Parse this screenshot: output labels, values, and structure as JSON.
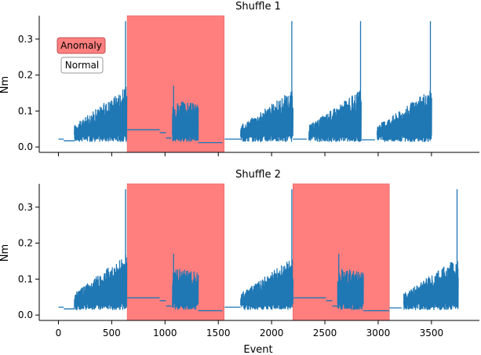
{
  "chart_data": [
    {
      "type": "line",
      "title": "Shuffle 1",
      "ylabel": "Nm",
      "xlabel": "",
      "xlim": [
        -180,
        3950
      ],
      "ylim": [
        -0.015,
        0.365
      ],
      "xticks": [
        0,
        500,
        1000,
        1500,
        2000,
        2500,
        3000,
        3500
      ],
      "xtick_labels": [],
      "yticks": [
        0.0,
        0.1,
        0.2,
        0.3
      ],
      "ytick_labels": [
        "0.0",
        "0.1",
        "0.2",
        "0.3"
      ],
      "series_color": "#1f77b4",
      "anomaly_color": "#ff7f7f",
      "anomaly_spans": [
        [
          645,
          1555
        ]
      ],
      "segments": [
        {
          "kind": "flat",
          "x": [
            0,
            50
          ],
          "y": 0.022
        },
        {
          "kind": "flat",
          "x": [
            50,
            150
          ],
          "y": 0.017
        },
        {
          "kind": "burst",
          "x": [
            150,
            640
          ],
          "base": 0.02,
          "top_start": 0.06,
          "top_end": 0.17
        },
        {
          "kind": "spike",
          "x": 630,
          "y": 0.35
        },
        {
          "kind": "flat",
          "x": [
            645,
            950
          ],
          "y": 0.048
        },
        {
          "kind": "flat",
          "x": [
            950,
            1010
          ],
          "y": 0.04
        },
        {
          "kind": "flat",
          "x": [
            1010,
            1060
          ],
          "y": 0.025
        },
        {
          "kind": "burst",
          "x": [
            1070,
            1310
          ],
          "base": 0.02,
          "top_start": 0.13,
          "top_end": 0.12
        },
        {
          "kind": "spike",
          "x": 1080,
          "y": 0.17
        },
        {
          "kind": "flat",
          "x": [
            1310,
            1540
          ],
          "y": 0.012
        },
        {
          "kind": "flat",
          "x": [
            1560,
            1710
          ],
          "y": 0.022
        },
        {
          "kind": "burst",
          "x": [
            1710,
            2200
          ],
          "base": 0.02,
          "top_start": 0.06,
          "top_end": 0.16
        },
        {
          "kind": "spike",
          "x": 2190,
          "y": 0.35
        },
        {
          "kind": "flat",
          "x": [
            2200,
            2330
          ],
          "y": 0.022
        },
        {
          "kind": "burst",
          "x": [
            2350,
            2840
          ],
          "base": 0.02,
          "top_start": 0.06,
          "top_end": 0.16
        },
        {
          "kind": "spike",
          "x": 2835,
          "y": 0.35
        },
        {
          "kind": "flat",
          "x": [
            2845,
            2970
          ],
          "y": 0.02
        },
        {
          "kind": "burst",
          "x": [
            2990,
            3500
          ],
          "base": 0.02,
          "top_start": 0.06,
          "top_end": 0.16
        },
        {
          "kind": "spike",
          "x": 3490,
          "y": 0.35
        }
      ]
    },
    {
      "type": "line",
      "title": "Shuffle 2",
      "ylabel": "Nm",
      "xlabel": "Event",
      "xlim": [
        -180,
        3950
      ],
      "ylim": [
        -0.015,
        0.365
      ],
      "xticks": [
        0,
        500,
        1000,
        1500,
        2000,
        2500,
        3000,
        3500
      ],
      "xtick_labels": [
        "0",
        "500",
        "1000",
        "1500",
        "2000",
        "2500",
        "3000",
        "3500"
      ],
      "yticks": [
        0.0,
        0.1,
        0.2,
        0.3
      ],
      "ytick_labels": [
        "0.0",
        "0.1",
        "0.2",
        "0.3"
      ],
      "series_color": "#1f77b4",
      "anomaly_color": "#ff7f7f",
      "anomaly_spans": [
        [
          645,
          1555
        ],
        [
          2200,
          3105
        ]
      ],
      "segments": [
        {
          "kind": "flat",
          "x": [
            0,
            50
          ],
          "y": 0.022
        },
        {
          "kind": "flat",
          "x": [
            50,
            150
          ],
          "y": 0.017
        },
        {
          "kind": "burst",
          "x": [
            150,
            640
          ],
          "base": 0.02,
          "top_start": 0.06,
          "top_end": 0.17
        },
        {
          "kind": "spike",
          "x": 630,
          "y": 0.35
        },
        {
          "kind": "flat",
          "x": [
            645,
            950
          ],
          "y": 0.048
        },
        {
          "kind": "flat",
          "x": [
            950,
            1010
          ],
          "y": 0.04
        },
        {
          "kind": "flat",
          "x": [
            1010,
            1060
          ],
          "y": 0.025
        },
        {
          "kind": "burst",
          "x": [
            1070,
            1310
          ],
          "base": 0.02,
          "top_start": 0.13,
          "top_end": 0.12
        },
        {
          "kind": "spike",
          "x": 1080,
          "y": 0.17
        },
        {
          "kind": "flat",
          "x": [
            1310,
            1540
          ],
          "y": 0.012
        },
        {
          "kind": "flat",
          "x": [
            1560,
            1710
          ],
          "y": 0.022
        },
        {
          "kind": "burst",
          "x": [
            1710,
            2200
          ],
          "base": 0.02,
          "top_start": 0.06,
          "top_end": 0.16
        },
        {
          "kind": "spike",
          "x": 2190,
          "y": 0.35
        },
        {
          "kind": "flat",
          "x": [
            2200,
            2510
          ],
          "y": 0.048
        },
        {
          "kind": "flat",
          "x": [
            2510,
            2570
          ],
          "y": 0.04
        },
        {
          "kind": "flat",
          "x": [
            2570,
            2620
          ],
          "y": 0.025
        },
        {
          "kind": "burst",
          "x": [
            2620,
            2860
          ],
          "base": 0.02,
          "top_start": 0.13,
          "top_end": 0.12
        },
        {
          "kind": "spike",
          "x": 2630,
          "y": 0.17
        },
        {
          "kind": "flat",
          "x": [
            2860,
            3105
          ],
          "y": 0.012
        },
        {
          "kind": "flat",
          "x": [
            3105,
            3220
          ],
          "y": 0.02
        },
        {
          "kind": "burst",
          "x": [
            3240,
            3750
          ],
          "base": 0.02,
          "top_start": 0.06,
          "top_end": 0.16
        },
        {
          "kind": "spike",
          "x": 3740,
          "y": 0.35
        }
      ]
    }
  ],
  "legend": {
    "placement": "top-left",
    "items": [
      {
        "label": "Anomaly",
        "color": "#ff7f7f"
      },
      {
        "label": "Normal",
        "color": "#ffffff"
      }
    ]
  }
}
